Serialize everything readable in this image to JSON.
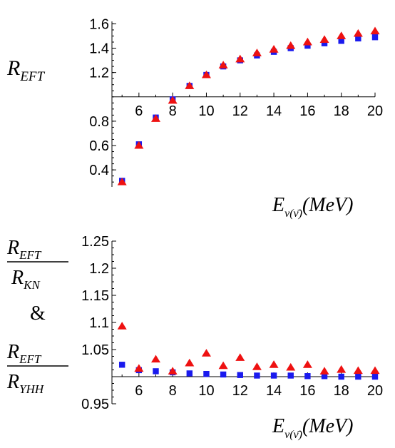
{
  "chart_data": [
    {
      "type": "scatter",
      "title": "",
      "ylabel": {
        "main": "R",
        "sub": "EFT"
      },
      "xlabel": {
        "main": "E",
        "sub": "ν(ν̄)",
        "unit": "(MeV)"
      },
      "xlim": [
        4.4,
        20
      ],
      "ylim": [
        0.26,
        1.62
      ],
      "axis_cross_y": 1.0,
      "xticks": [
        6,
        8,
        10,
        12,
        14,
        16,
        18,
        20
      ],
      "yticks": [
        0.4,
        0.6,
        0.8,
        1.2,
        1.4,
        1.6
      ],
      "xtick_labels": [
        "6",
        "8",
        "10",
        "12",
        "14",
        "16",
        "18",
        "20"
      ],
      "ytick_labels": [
        "0.4",
        "0.6",
        "0.8",
        "1.2",
        "1.4",
        "1.6"
      ],
      "grid": false,
      "x": [
        5,
        6,
        7,
        8,
        9,
        10,
        11,
        12,
        13,
        14,
        15,
        16,
        17,
        18,
        19,
        20
      ],
      "series": [
        {
          "marker": "square",
          "color": "#1a1aee",
          "values": [
            0.31,
            0.61,
            0.83,
            0.98,
            1.09,
            1.18,
            1.25,
            1.3,
            1.34,
            1.37,
            1.4,
            1.42,
            1.44,
            1.46,
            1.48,
            1.49
          ]
        },
        {
          "marker": "triangle",
          "color": "#ee1111",
          "values": [
            0.3,
            0.6,
            0.82,
            0.97,
            1.09,
            1.18,
            1.26,
            1.31,
            1.36,
            1.39,
            1.42,
            1.45,
            1.47,
            1.5,
            1.52,
            1.54
          ]
        }
      ]
    },
    {
      "type": "scatter",
      "title": "",
      "ylabel": {
        "num1": "R",
        "num1_sub": "EFT",
        "den1": "R",
        "den1_sub": "KN",
        "joiner": "&",
        "num2": "R",
        "num2_sub": "EFT",
        "den2": "R",
        "den2_sub": "YHH"
      },
      "xlabel": {
        "main": "E",
        "sub": "ν(ν̄)",
        "unit": "(MeV)"
      },
      "xlim": [
        4.4,
        20
      ],
      "ylim": [
        0.95,
        1.25
      ],
      "axis_cross_y": 1.0,
      "xticks": [
        6,
        8,
        10,
        12,
        14,
        16,
        18,
        20
      ],
      "yticks": [
        0.95,
        1.05,
        1.1,
        1.15,
        1.2,
        1.25
      ],
      "xtick_labels": [
        "6",
        "8",
        "10",
        "12",
        "14",
        "16",
        "18",
        "20"
      ],
      "ytick_labels": [
        "0.95",
        "1.05",
        "1.1",
        "1.15",
        "1.2",
        "1.25"
      ],
      "grid": false,
      "x": [
        5,
        6,
        7,
        8,
        9,
        10,
        11,
        12,
        13,
        14,
        15,
        16,
        17,
        18,
        19,
        20
      ],
      "series": [
        {
          "marker": "square",
          "color": "#1a1aee",
          "values": [
            1.022,
            1.012,
            1.01,
            1.008,
            1.006,
            1.005,
            1.004,
            1.003,
            1.002,
            1.002,
            1.002,
            1.001,
            1.001,
            1.0,
            1.0,
            1.0
          ]
        },
        {
          "marker": "triangle",
          "color": "#ee1111",
          "values": [
            1.093,
            1.015,
            1.032,
            1.01,
            1.025,
            1.043,
            1.02,
            1.035,
            1.018,
            1.022,
            1.017,
            1.022,
            1.01,
            1.013,
            1.011,
            1.011
          ]
        }
      ]
    }
  ]
}
